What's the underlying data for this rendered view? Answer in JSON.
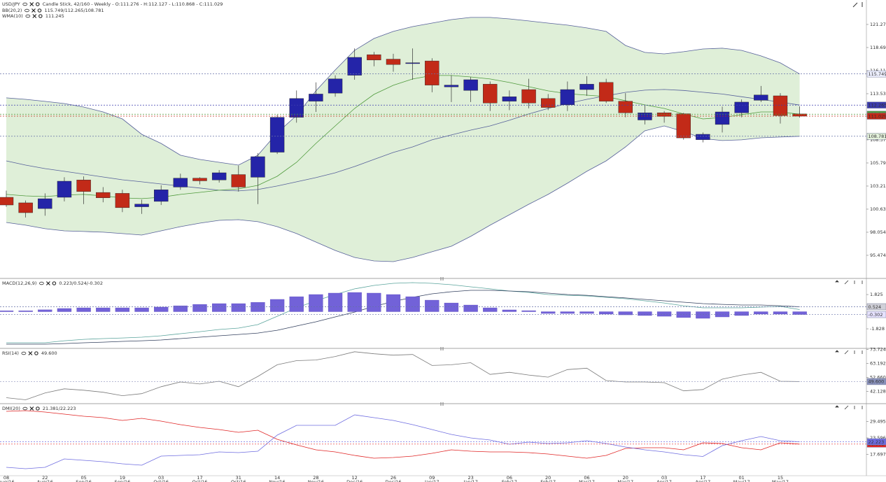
{
  "chart_data": [
    {
      "type": "candlestick",
      "title": "USD/JPY",
      "subtitle": "Candle Stick, 42/160 - Weekly - O:111.276 - H:112.127 - L:110.868 - C:111.029",
      "separator": "/",
      "up_color": "#2424a8",
      "down_color": "#c22a18",
      "close_tag_color": "#c22a18",
      "ylim": [
        92.97,
        124.01
      ],
      "yticks": [
        95.474,
        98.054,
        100.634,
        103.215,
        105.795,
        108.376,
        110.956,
        113.536,
        116.117,
        118.697,
        121.277
      ],
      "open": [
        101.96,
        101.34,
        100.7,
        101.96,
        103.9,
        102.5,
        102.4,
        100.9,
        101.5,
        103.1,
        104.1,
        103.9,
        104.5,
        104.2,
        107,
        110.9,
        112.7,
        113.6,
        115.6,
        117.9,
        117.4,
        116.9,
        117.2,
        114.3,
        113.9,
        114.6,
        112.7,
        114.0,
        113.0,
        112.3,
        114.0,
        114.8,
        112.7,
        110.6,
        111.4,
        111.3,
        108.4,
        110.1,
        111.4,
        112.8,
        113.3,
        111.276
      ],
      "high": [
        102.7,
        101.6,
        102.4,
        104.2,
        104.3,
        103.1,
        102.8,
        101.7,
        103.3,
        104.6,
        104.2,
        105.0,
        105.5,
        106.9,
        111.2,
        113.9,
        114.8,
        115.6,
        118.6,
        118.2,
        118.0,
        118.6,
        117.5,
        115.6,
        115.4,
        114.9,
        113.9,
        115.2,
        113.5,
        114.9,
        115.5,
        115.2,
        113.6,
        112.2,
        111.6,
        111.4,
        109.2,
        112.1,
        112.9,
        114.4,
        113.6,
        112.127
      ],
      "low": [
        100.9,
        99.7,
        99.9,
        101.5,
        101.2,
        101.4,
        100.3,
        100.1,
        101.1,
        102.8,
        103.4,
        103.6,
        102.6,
        101.2,
        106.8,
        110.3,
        111.5,
        113.2,
        115.1,
        116.6,
        116.0,
        115.1,
        113.7,
        112.6,
        112.6,
        111.6,
        111.7,
        111.9,
        111.7,
        111.6,
        113.3,
        112.5,
        110.9,
        110.1,
        110.3,
        108.4,
        108.1,
        109.2,
        110.9,
        112.6,
        110.2,
        110.868
      ],
      "close": [
        101.1,
        100.24,
        101.8,
        103.76,
        102.6,
        101.9,
        100.8,
        101.2,
        102.8,
        104.1,
        103.8,
        104.7,
        103.1,
        106.5,
        110.9,
        113.0,
        113.5,
        115.2,
        117.6,
        117.3,
        116.8,
        117.0,
        114.5,
        114.5,
        115.1,
        112.5,
        113.2,
        112.5,
        112.0,
        114.0,
        114.6,
        112.7,
        111.4,
        111.4,
        111.0,
        108.6,
        109.0,
        111.5,
        112.6,
        113.4,
        111.1,
        111.029
      ],
      "series": [
        {
          "name": "BB(20,2)",
          "color": "#56609a",
          "fill": "#d9ecd1",
          "tag_colors": [
            "#eef0ff",
            "#3c3cae",
            "#e4f2dc"
          ],
          "upper": [
            113.07,
            112.91,
            112.68,
            112.44,
            112.05,
            111.5,
            110.72,
            109.0,
            107.98,
            106.66,
            106.19,
            105.87,
            105.56,
            106.66,
            109.16,
            111.11,
            113.85,
            116.19,
            118.38,
            119.71,
            120.5,
            121.04,
            121.43,
            121.82,
            122.06,
            122.06,
            121.9,
            121.67,
            121.43,
            121.2,
            120.89,
            120.5,
            118.93,
            118.15,
            117.99,
            118.23,
            118.54,
            118.62,
            118.38,
            117.76,
            116.98,
            115.749
          ],
          "middle": [
            106.03,
            105.56,
            105.17,
            104.86,
            104.55,
            104.23,
            103.92,
            103.69,
            103.45,
            103.22,
            102.99,
            102.75,
            102.67,
            102.83,
            103.22,
            103.69,
            104.16,
            104.7,
            105.4,
            106.19,
            106.97,
            107.59,
            108.38,
            108.93,
            109.47,
            109.94,
            110.57,
            111.27,
            111.89,
            112.44,
            112.91,
            113.3,
            113.69,
            113.93,
            114.01,
            113.9,
            113.7,
            113.5,
            113.2,
            112.9,
            112.6,
            112.265
          ],
          "lower": [
            99.15,
            98.84,
            98.45,
            98.21,
            98.14,
            98.06,
            97.9,
            97.74,
            98.21,
            98.68,
            99.07,
            99.38,
            99.46,
            99.23,
            98.68,
            97.9,
            96.96,
            96.02,
            95.24,
            94.85,
            94.77,
            95.24,
            95.87,
            96.49,
            97.59,
            98.84,
            100.01,
            101.18,
            102.28,
            103.53,
            104.86,
            106.03,
            107.59,
            109.39,
            109.94,
            109.31,
            108.53,
            108.3,
            108.38,
            108.61,
            108.69,
            108.781
          ]
        },
        {
          "name": "WMA(10)",
          "color": "#4f9a3c",
          "tag_colors": [
            "#4f9a3c"
          ],
          "values": [
            102.28,
            102.12,
            102.04,
            102.2,
            102.28,
            102.12,
            101.89,
            101.81,
            101.96,
            102.28,
            102.51,
            102.75,
            102.9,
            103.29,
            104.31,
            105.87,
            107.98,
            109.94,
            111.89,
            113.46,
            114.48,
            115.18,
            115.57,
            115.57,
            115.41,
            115.18,
            114.79,
            114.32,
            113.85,
            113.54,
            113.38,
            113.22,
            112.75,
            112.29,
            111.89,
            111.27,
            110.72,
            110.88,
            111.19,
            111.5,
            111.5,
            111.245
          ]
        }
      ]
    },
    {
      "type": "combo",
      "title": "MACD(12,26,9)",
      "separator": "/",
      "ylim": [
        -3.84,
        3.47
      ],
      "yticks": [
        1.825,
        -1.828
      ],
      "series": [
        {
          "kind": "line",
          "color": "#5aa49c",
          "values": [
            -3.32,
            -3.32,
            -3.32,
            -3.1,
            -2.95,
            -2.87,
            -2.8,
            -2.72,
            -2.57,
            -2.35,
            -2.13,
            -1.9,
            -1.75,
            -1.38,
            -0.49,
            0.41,
            1.16,
            1.83,
            2.43,
            2.8,
            3.02,
            3.1,
            3.02,
            2.87,
            2.65,
            2.43,
            2.2,
            2.05,
            1.83,
            1.75,
            1.68,
            1.53,
            1.38,
            1.16,
            0.93,
            0.63,
            0.41,
            0.41,
            0.41,
            0.49,
            0.56,
            0.223
          ]
        },
        {
          "kind": "line",
          "color": "#33405e",
          "tag_colors": [
            "#d0d0d8"
          ],
          "values": [
            -3.47,
            -3.47,
            -3.47,
            -3.4,
            -3.32,
            -3.25,
            -3.17,
            -3.1,
            -3.02,
            -2.87,
            -2.72,
            -2.57,
            -2.43,
            -2.28,
            -1.98,
            -1.53,
            -1.08,
            -0.56,
            -0.04,
            0.56,
            1.08,
            1.53,
            1.9,
            2.13,
            2.28,
            2.28,
            2.2,
            2.13,
            1.98,
            1.83,
            1.75,
            1.6,
            1.46,
            1.31,
            1.16,
            1.01,
            0.86,
            0.78,
            0.71,
            0.71,
            0.63,
            0.524
          ]
        },
        {
          "kind": "bar",
          "color": "#7262d8",
          "tag_colors": [
            "#e6e2ff"
          ],
          "values": [
            0.1,
            0.1,
            0.2,
            0.34,
            0.41,
            0.41,
            0.41,
            0.41,
            0.49,
            0.63,
            0.78,
            0.86,
            0.86,
            1.0,
            1.31,
            1.6,
            1.83,
            1.98,
            2.05,
            1.98,
            1.83,
            1.6,
            1.23,
            0.93,
            0.71,
            0.41,
            0.19,
            0.11,
            -0.19,
            -0.19,
            -0.19,
            -0.26,
            -0.34,
            -0.41,
            -0.49,
            -0.63,
            -0.71,
            -0.56,
            -0.41,
            -0.26,
            -0.26,
            -0.302
          ]
        }
      ]
    },
    {
      "type": "line",
      "title": "RSI(14)",
      "ylim": [
        33.6,
        73.9
      ],
      "yticks": [
        73.724,
        63.192,
        {
          "value": 52.66,
          "label": "52.660"
        },
        42.128
      ],
      "series": [
        {
          "color": "#7a7a7a",
          "tag_colors": [
            "#8a92bc"
          ],
          "values": [
            37.5,
            35.96,
            41.1,
            44.18,
            43.15,
            41.61,
            39.04,
            40.58,
            45.72,
            49.32,
            47.78,
            49.83,
            45.72,
            53.43,
            62.16,
            65.25,
            65.76,
            68.33,
            71.93,
            70.39,
            69.36,
            69.87,
            61.65,
            62.16,
            63.71,
            54.97,
            56.51,
            54.46,
            52.92,
            58.57,
            59.6,
            50.34,
            49.32,
            49.32,
            48.8,
            42.64,
            43.66,
            51.37,
            54.46,
            56.51,
            49.83,
            49.6
          ],
          "value_labels": [
            null,
            null,
            null,
            null,
            null,
            null,
            null,
            null,
            null,
            null,
            null,
            null,
            null,
            null,
            null,
            null,
            null,
            null,
            null,
            null,
            null,
            null,
            null,
            null,
            null,
            null,
            null,
            null,
            null,
            null,
            null,
            null,
            null,
            null,
            null,
            null,
            null,
            null,
            null,
            null,
            null,
            "49.600"
          ]
        }
      ]
    },
    {
      "type": "line",
      "title": "DMI(20)",
      "separator": "/",
      "ylim": [
        10.03,
        35.66
      ],
      "yticks": [
        29.495,
        23.596,
        17.697
      ],
      "categories": [
        [
          "08",
          "Aug/16"
        ],
        null,
        [
          "22",
          "Aug/16"
        ],
        null,
        [
          "05",
          "Sep/16"
        ],
        null,
        [
          "19",
          "Sep/16"
        ],
        null,
        [
          "03",
          "Oct/16"
        ],
        null,
        [
          "17",
          "Oct/16"
        ],
        null,
        [
          "31",
          "Oct/16"
        ],
        null,
        [
          "14",
          "Nov/16"
        ],
        null,
        [
          "28",
          "Nov/16"
        ],
        null,
        [
          "12",
          "Dec/16"
        ],
        null,
        [
          "26",
          "Dec/16"
        ],
        null,
        [
          "09",
          "Jan/17"
        ],
        null,
        [
          "23",
          "Jan/17"
        ],
        null,
        [
          "06",
          "Feb/17"
        ],
        null,
        [
          "20",
          "Feb/17"
        ],
        null,
        [
          "06",
          "Mar/17"
        ],
        null,
        [
          "20",
          "Mar/17"
        ],
        null,
        [
          "03",
          "Apr/17"
        ],
        null,
        [
          "17",
          "Apr/17"
        ],
        null,
        [
          "01",
          "May/17"
        ],
        null,
        [
          "15",
          "May/17"
        ],
        null
      ],
      "series": [
        {
          "color": "#e02424",
          "tag_colors": [
            "#e02424"
          ],
          "values": [
            33.14,
            33.4,
            32.89,
            32.14,
            31.39,
            30.88,
            29.88,
            30.63,
            29.63,
            28.37,
            27.36,
            26.61,
            25.61,
            26.36,
            23.09,
            21.08,
            19.32,
            18.57,
            17.32,
            16.31,
            16.56,
            17.06,
            18.07,
            19.32,
            18.82,
            18.57,
            18.57,
            18.32,
            17.82,
            17.06,
            16.31,
            17.32,
            19.83,
            20.08,
            20.08,
            19.32,
            21.84,
            21.59,
            20.08,
            19.32,
            21.84,
            21.381
          ]
        },
        {
          "color": "#6e6ce0",
          "tag_colors": [
            "#6e6ce0"
          ],
          "values": [
            13.04,
            12.54,
            13.04,
            16.06,
            15.56,
            15.05,
            14.3,
            13.8,
            17.06,
            17.31,
            17.57,
            18.57,
            18.32,
            18.82,
            24.6,
            28.12,
            28.12,
            28.12,
            31.89,
            30.88,
            29.88,
            28.37,
            26.61,
            24.85,
            23.6,
            22.84,
            21.33,
            22.09,
            21.59,
            21.84,
            22.59,
            21.59,
            20.33,
            19.32,
            18.57,
            17.57,
            16.93,
            20.83,
            22.59,
            24.1,
            22.59,
            22.223
          ]
        }
      ]
    }
  ]
}
